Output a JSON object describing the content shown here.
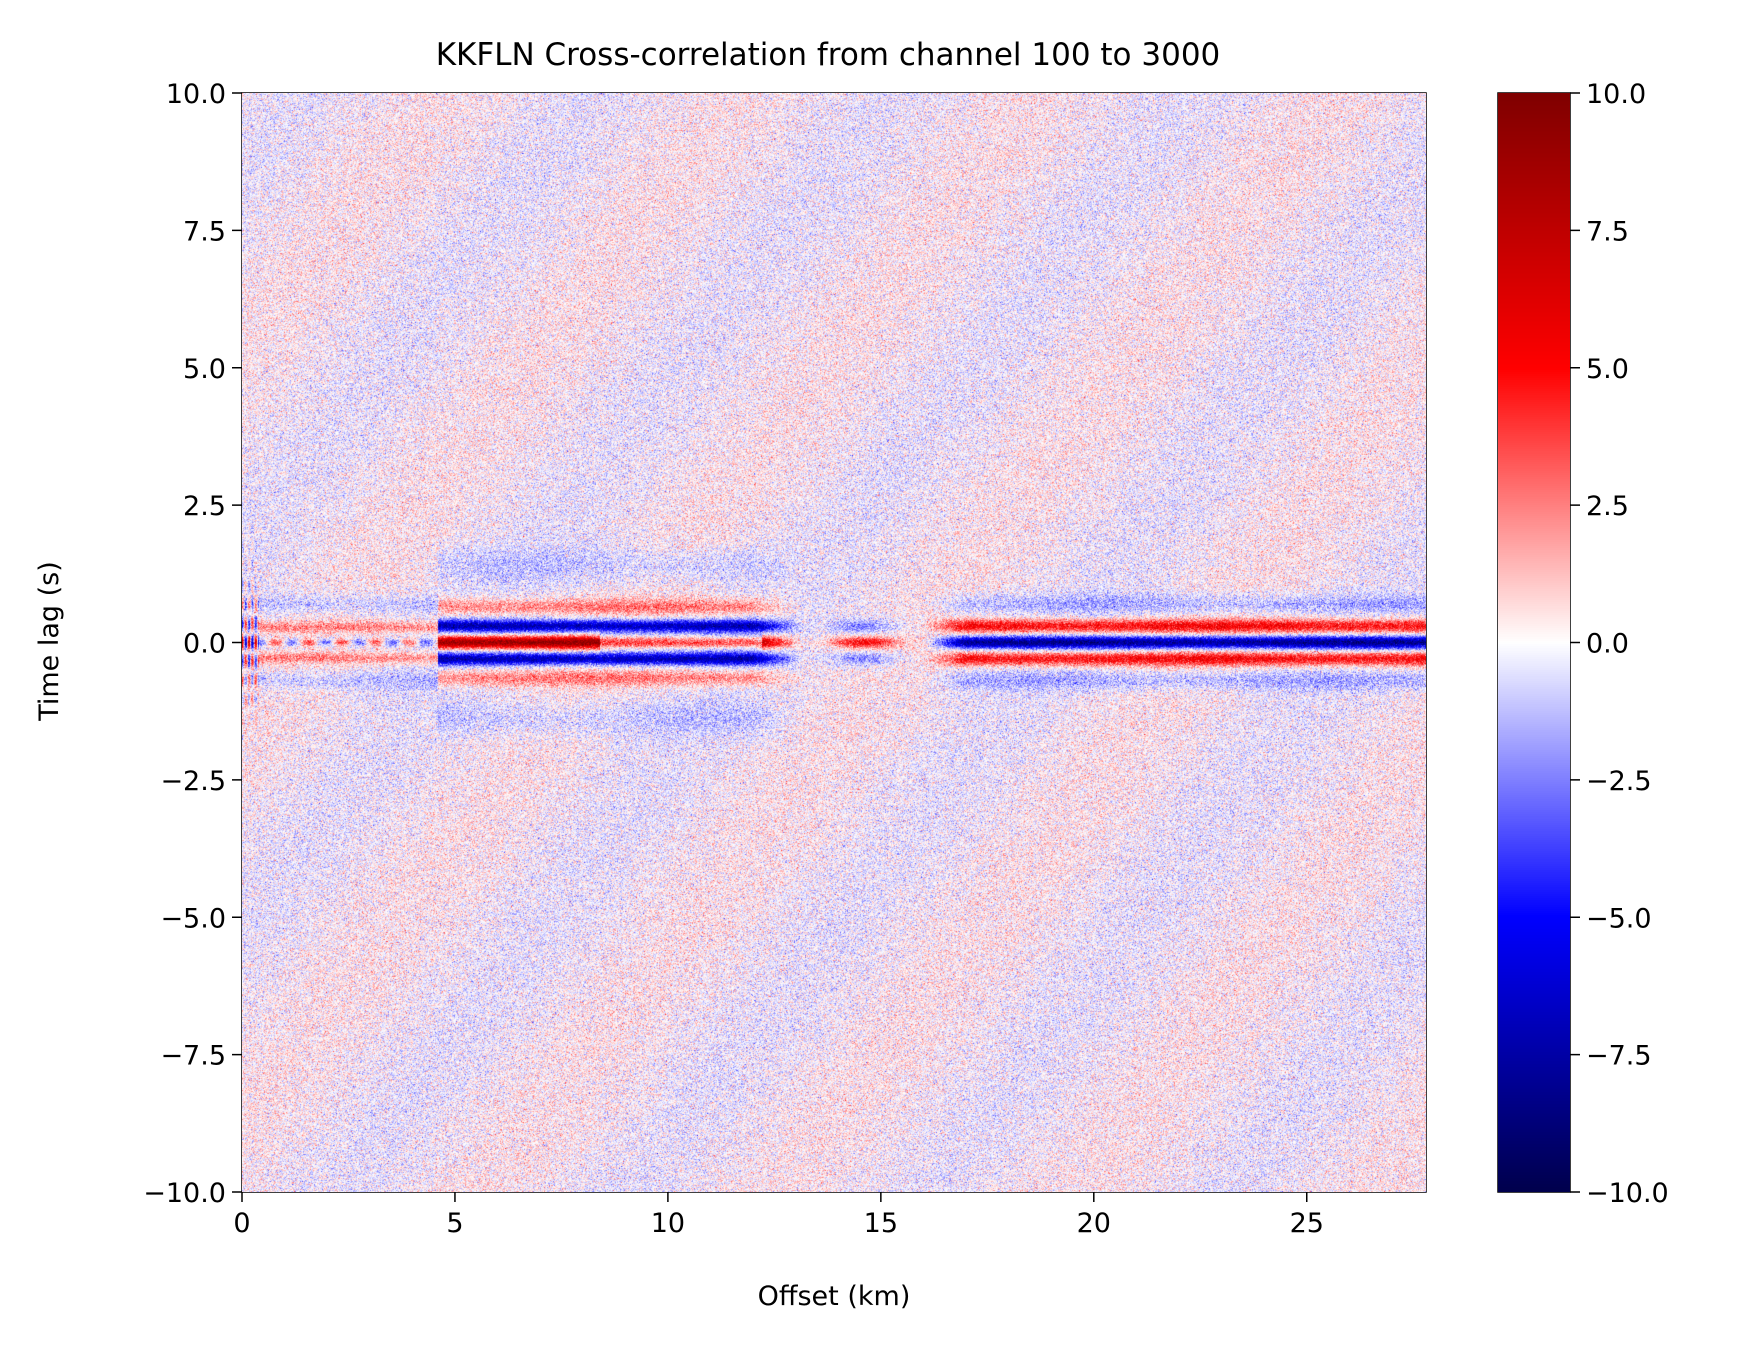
{
  "chart_data": {
    "type": "heatmap",
    "title": "KKFLN Cross-correlation from channel 100 to 3000",
    "xlabel": "Offset (km)",
    "ylabel": "Time lag (s)",
    "xlim": [
      0,
      27.8
    ],
    "ylim": [
      -10,
      10
    ],
    "x_ticks": [
      0,
      5,
      10,
      15,
      20,
      25
    ],
    "x_tick_labels": [
      "0",
      "5",
      "10",
      "15",
      "20",
      "25"
    ],
    "y_ticks": [
      10,
      7.5,
      5,
      2.5,
      0,
      -2.5,
      -5,
      -7.5,
      -10
    ],
    "y_tick_labels": [
      "10.0",
      "7.5",
      "5.0",
      "2.5",
      "0.0",
      "−2.5",
      "−5.0",
      "−7.5",
      "−10.0"
    ],
    "colorbar": {
      "colormap": "seismic",
      "vmin": -10,
      "vmax": 10,
      "ticks": [
        10,
        7.5,
        5,
        2.5,
        0,
        -2.5,
        -5,
        -7.5,
        -10
      ],
      "tick_labels": [
        "10.0",
        "7.5",
        "5.0",
        "2.5",
        "0.0",
        "−2.5",
        "−5.0",
        "−7.5",
        "−10.0"
      ]
    },
    "grid": false,
    "features": [
      {
        "offset_km": [
          0,
          0.4
        ],
        "description": "strong alternating red/blue near zero lag, lags to about +/-1.5 s"
      },
      {
        "offset_km": [
          0.4,
          4.5
        ],
        "description": "moderate coherent energy near zero lag"
      },
      {
        "offset_km": [
          5,
          13
        ],
        "description": "strong red band at 0 s flanked by blue bands"
      },
      {
        "offset_km": [
          14,
          15.5
        ],
        "description": "weak red band at 0 s"
      },
      {
        "offset_km": [
          16,
          27.8
        ],
        "description": "blue band at 0 s flanked by red bands"
      }
    ]
  }
}
